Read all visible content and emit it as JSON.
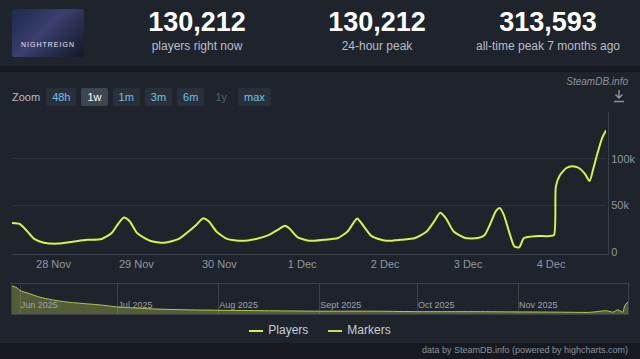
{
  "header": {
    "image_text": "NIGHTREIGN",
    "stats": [
      {
        "value": "130,212",
        "label": "players right now"
      },
      {
        "value": "130,212",
        "label": "24-hour peak"
      },
      {
        "value": "313,593",
        "label": "all-time peak 7 months ago"
      }
    ]
  },
  "watermark": "SteamDB.info",
  "zoom": {
    "label": "Zoom",
    "options": [
      "48h",
      "1w",
      "1m",
      "3m",
      "6m",
      "1y",
      "max"
    ],
    "selected": "1w",
    "disabled": [
      "1y"
    ]
  },
  "chart_data": [
    {
      "type": "line",
      "x": [
        -0.5,
        -0.407,
        -0.314,
        -0.233,
        -0.116,
        0.058,
        0.233,
        0.407,
        0.581,
        0.698,
        0.779,
        0.849,
        0.919,
        1.012,
        1.163,
        1.337,
        1.512,
        1.628,
        1.721,
        1.802,
        1.872,
        1.965,
        2.093,
        2.267,
        2.442,
        2.593,
        2.709,
        2.791,
        2.849,
        2.942,
        3.081,
        3.256,
        3.43,
        3.547,
        3.616,
        3.663,
        3.721,
        3.837,
        4.012,
        4.186,
        4.36,
        4.5,
        4.593,
        4.663,
        4.733,
        4.826,
        4.965,
        5.116,
        5.198,
        5.267,
        5.337,
        5.384,
        5.43,
        5.5,
        5.558,
        5.616,
        5.674,
        5.814,
        5.965,
        6.035,
        6.058,
        6.105,
        6.186,
        6.256,
        6.337,
        6.407,
        6.465,
        6.512,
        6.558,
        6.616,
        6.663
      ],
      "series": [
        {
          "name": "Players",
          "color": "#d7f34b",
          "values": [
            31000,
            30000,
            22000,
            14000,
            10000,
            9000,
            11000,
            13000,
            14000,
            20000,
            30000,
            37000,
            33000,
            20000,
            12000,
            10000,
            14000,
            22000,
            29000,
            36000,
            33000,
            22000,
            14000,
            12000,
            14000,
            18000,
            24000,
            28000,
            25000,
            16000,
            12000,
            13000,
            15000,
            22000,
            31000,
            36000,
            30000,
            17000,
            12000,
            13000,
            15000,
            22000,
            33000,
            42000,
            36000,
            22000,
            15000,
            15000,
            18000,
            30000,
            44000,
            47000,
            40000,
            20000,
            6000,
            5000,
            15000,
            17000,
            17000,
            18000,
            70000,
            82000,
            90000,
            92000,
            90000,
            84000,
            76000,
            90000,
            105000,
            122000,
            130212
          ]
        }
      ],
      "xlim": [
        -0.5,
        6.663
      ],
      "xticks": [
        {
          "value": 0,
          "label": "28 Nov"
        },
        {
          "value": 1,
          "label": "29 Nov"
        },
        {
          "value": 2,
          "label": "30 Nov"
        },
        {
          "value": 3,
          "label": "1 Dec"
        },
        {
          "value": 4,
          "label": "2 Dec"
        },
        {
          "value": 5,
          "label": "3 Dec"
        },
        {
          "value": 6,
          "label": "4 Dec"
        }
      ],
      "ylim": [
        0,
        150000
      ],
      "yticks": [
        0,
        {
          "value": 50000,
          "label": "50k"
        },
        {
          "value": 100000,
          "label": "100k"
        }
      ],
      "grid": true
    },
    {
      "type": "area",
      "x": [
        -2.5,
        -1,
        0,
        3,
        6,
        10,
        15,
        20,
        25,
        30,
        35,
        40,
        50,
        61,
        75,
        92,
        110,
        122,
        140,
        153,
        165,
        175,
        180,
        182,
        183.5,
        185,
        185.6,
        186.6
      ],
      "values": [
        300000,
        280000,
        250000,
        215000,
        180000,
        150000,
        125000,
        110000,
        95000,
        75000,
        65000,
        55000,
        45000,
        40000,
        35000,
        30000,
        30000,
        25000,
        25000,
        22000,
        20000,
        18000,
        35000,
        20000,
        45000,
        20000,
        90000,
        130000
      ],
      "color": "#b5c94a",
      "xlim": [
        -2.5,
        186.6
      ],
      "xticks": [
        {
          "value": 0,
          "label": "Jun 2025"
        },
        {
          "value": 30,
          "label": "Jul 2025"
        },
        {
          "value": 61,
          "label": "Aug 2025"
        },
        {
          "value": 92,
          "label": "Sept 2025"
        },
        {
          "value": 122,
          "label": "Oct 2025"
        },
        {
          "value": 153,
          "label": "Nov 2025"
        }
      ],
      "ylim": [
        0,
        320000
      ],
      "tick_labels": "x",
      "grid": "x"
    }
  ],
  "legend_extra": {
    "label": "Markers",
    "color": "#c9dc5a"
  },
  "credit": "data by SteamDB.info (powered by highcharts.com)"
}
